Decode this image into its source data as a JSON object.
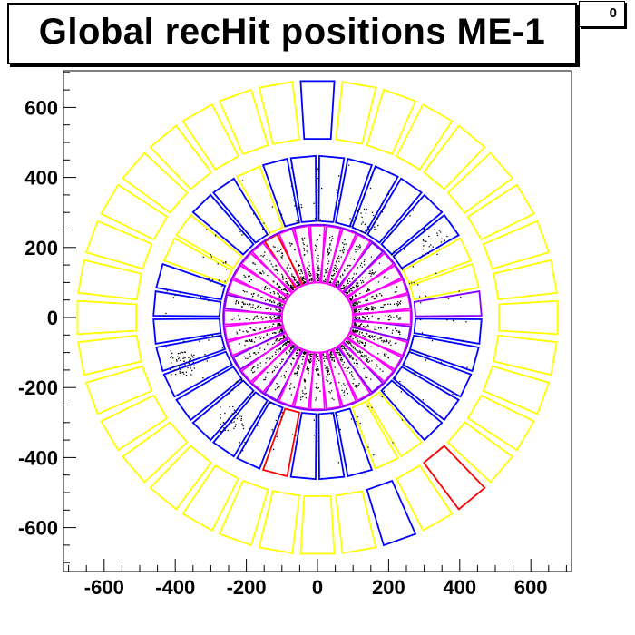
{
  "title": "Global recHit positions ME-1",
  "stats_entries": "0",
  "chart_data": {
    "type": "scatter",
    "title": "Global recHit positions ME-1",
    "xlabel": "",
    "ylabel": "",
    "xlim": [
      -720,
      720
    ],
    "ylim": [
      -720,
      720
    ],
    "xticks": [
      -600,
      -400,
      -200,
      0,
      200,
      400,
      600
    ],
    "yticks": [
      600,
      400,
      200,
      0,
      -200,
      -400,
      -600
    ],
    "grid": false,
    "colors": {
      "axes": "#000000",
      "yellow": "#ffff00",
      "blue": "#0000ff",
      "purple": "#8000ff",
      "magenta": "#ff00ff",
      "red": "#ff0000",
      "hits": "#000000"
    },
    "rings": [
      {
        "name": "outer",
        "count": 36,
        "r_inner": 510,
        "r_outer": 675,
        "w_inner": 75,
        "w_outer": 95,
        "phase_deg": 90,
        "default_color": "yellow",
        "overrides": {
          "0": "blue",
          "20": "blue",
          "22": "red"
        }
      },
      {
        "name": "middle",
        "count": 36,
        "r_inner": 275,
        "r_outer": 460,
        "w_inner": 41,
        "w_outer": 70,
        "phase_deg": 85,
        "default_color": "blue",
        "overrides": {
          "3": "yellow",
          "6": "yellow",
          "7": "yellow",
          "17": "red",
          "21": "yellow",
          "22": "yellow",
          "29": "yellow",
          "30": "yellow",
          "28": "purple"
        }
      },
      {
        "name": "inner",
        "count": 36,
        "r_inner": 100,
        "r_outer": 262,
        "w_inner": 22,
        "w_outer": 40,
        "phase_deg": 90,
        "default_color": "magenta",
        "overrides": {
          "3": "red",
          "8": "purple",
          "12": "purple",
          "15": "purple",
          "22": "purple",
          "26": "purple",
          "32": "purple"
        }
      }
    ],
    "boundary_circles": [
      {
        "r": 265,
        "color": "purple"
      },
      {
        "r": 100,
        "color": "magenta"
      }
    ],
    "hit_bands": [
      {
        "r_min": 105,
        "r_max": 240,
        "count": 1400
      },
      {
        "r_min": 275,
        "r_max": 445,
        "count": 220
      }
    ],
    "hit_clusters": [
      {
        "x": -380,
        "y": -130,
        "count": 60
      },
      {
        "x": -240,
        "y": -290,
        "count": 30
      },
      {
        "x": 140,
        "y": 280,
        "count": 25
      },
      {
        "x": 330,
        "y": 220,
        "count": 20
      }
    ]
  }
}
